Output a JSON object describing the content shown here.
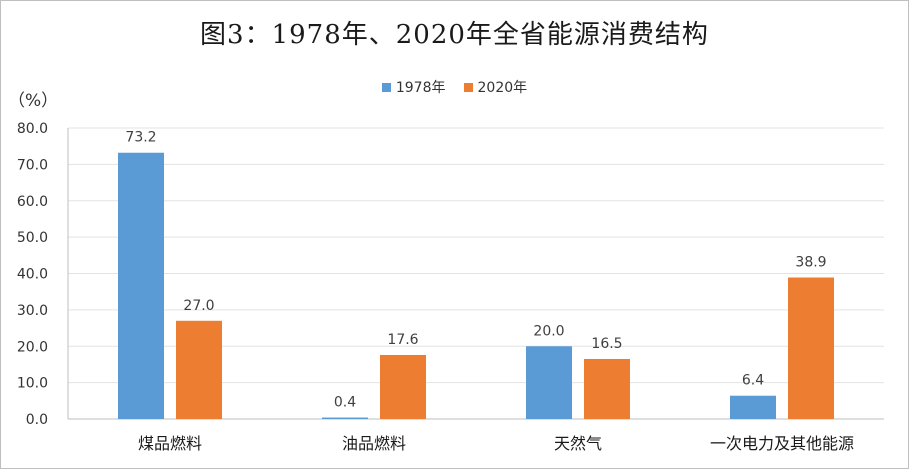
{
  "chart_data": {
    "type": "bar",
    "title": "图3：1978年、2020年全省能源消费结构",
    "ylabel": "（%）",
    "xlabel": "",
    "categories": [
      "煤品燃料",
      "油品燃料",
      "天然气",
      "一次电力及其他能源"
    ],
    "series": [
      {
        "name": "1978年",
        "color": "#5b9bd5",
        "values": [
          73.2,
          0.4,
          20.0,
          6.4
        ],
        "labels": [
          "73.2",
          "0.4",
          "20.0",
          "6.4"
        ]
      },
      {
        "name": "2020年",
        "color": "#ed7d31",
        "values": [
          27.0,
          17.6,
          16.5,
          38.9
        ],
        "labels": [
          "27.0",
          "17.6",
          "16.5",
          "38.9"
        ]
      }
    ],
    "ylim": [
      0,
      80
    ],
    "yticks": [
      "0.0",
      "10.0",
      "20.0",
      "30.0",
      "40.0",
      "50.0",
      "60.0",
      "70.0",
      "80.0"
    ],
    "grid": true,
    "legend": "top-center"
  }
}
